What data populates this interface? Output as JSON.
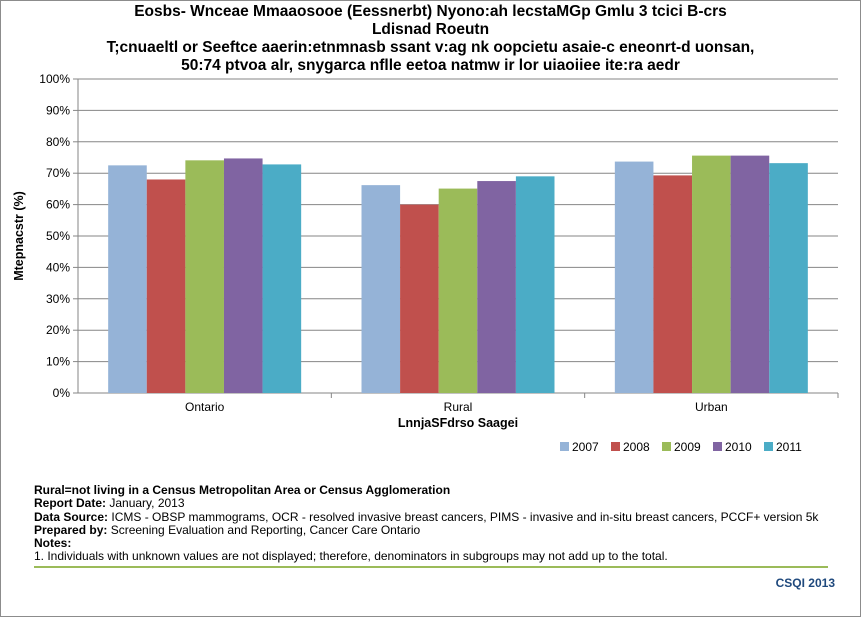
{
  "chart_data": {
    "type": "bar",
    "title_lines": [
      "Eosbs- Wnceae Mmaaosooe (Eessnerbt) Nyono:ah lecstaMGp Gmlu 3 tcici B-crs",
      "Ldisnad Roeutn",
      "T;cnuaeltl or Seeftce aaerin:etnmnasb ssant v:ag nk oopcietu asaie-c eneonrt-d uonsan,",
      "50:74 ptvoa alr, snygarca nflle eetoa natmw ir lor uiaoiiee ite:ra aedr"
    ],
    "xlabel": "LnnjaSFdrso Saagei",
    "ylabel": "Mtepnacstr (%)",
    "ylim": [
      0,
      100
    ],
    "yticks": [
      "0%",
      "10%",
      "20%",
      "30%",
      "40%",
      "50%",
      "60%",
      "70%",
      "80%",
      "90%",
      "100%"
    ],
    "grid": true,
    "legend_position": "bottom-right",
    "categories": [
      "Ontario",
      "Rural",
      "Urban"
    ],
    "series": [
      {
        "name": "2007",
        "color": "#95b3d7",
        "values": [
          72.5,
          66.2,
          73.7
        ]
      },
      {
        "name": "2008",
        "color": "#c0504d",
        "values": [
          68.0,
          60.0,
          69.3
        ]
      },
      {
        "name": "2009",
        "color": "#9bbb59",
        "values": [
          74.1,
          65.1,
          75.6
        ]
      },
      {
        "name": "2010",
        "color": "#8064a2",
        "values": [
          74.7,
          67.5,
          75.6
        ]
      },
      {
        "name": "2011",
        "color": "#4bacc6",
        "values": [
          72.8,
          69.0,
          73.2
        ]
      }
    ]
  },
  "notes": {
    "rural_def": "Rural=not living in a Census Metropolitan Area or Census Agglomeration",
    "report_date_label": "Report Date:",
    "report_date": " January, 2013",
    "data_source_label": "Data Source:",
    "data_source": " ICMS - OBSP mammograms, OCR - resolved invasive breast cancers, PIMS - invasive and in-situ breast cancers, PCCF+ version 5k",
    "prepared_by_label": "Prepared by:",
    "prepared_by": " Screening Evaluation and Reporting, Cancer Care Ontario",
    "notes_label": "Notes:",
    "note_1": "1. Individuals with unknown values are not displayed; therefore, denominators in subgroups may not add up to the total."
  },
  "footer": "CSQI 2013",
  "colors": {
    "grid": "#868686",
    "accent_rule": "#9bbb59",
    "footer": "#1f497d"
  }
}
